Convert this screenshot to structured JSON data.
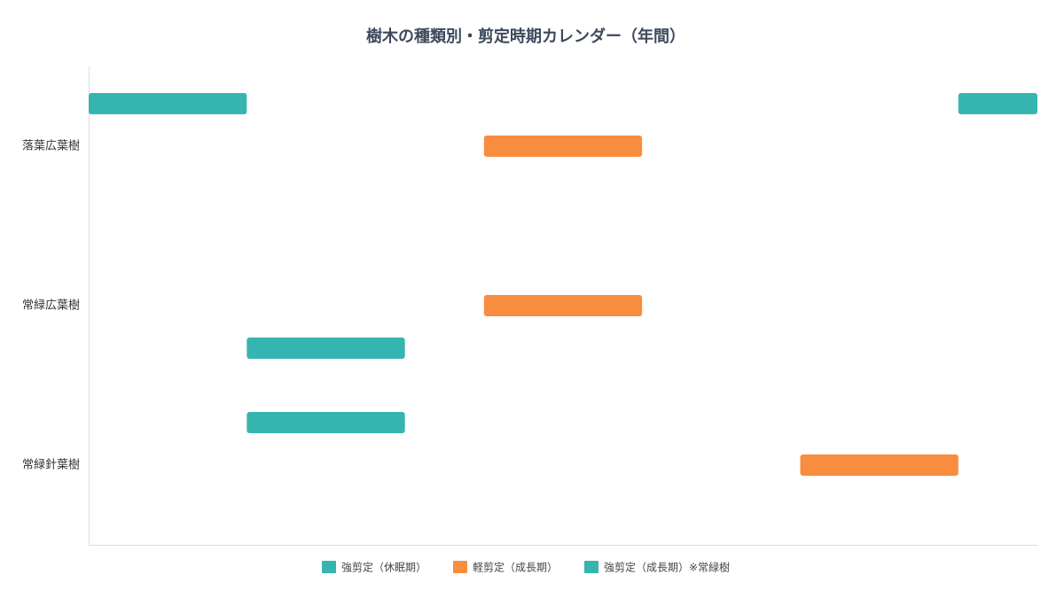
{
  "chart_data": {
    "type": "range-bar",
    "title": "樹木の種類別・剪定時期カレンダー（年間）",
    "categories": [
      "落葉広葉樹",
      "常緑広葉樹",
      "常緑針葉樹"
    ],
    "series": [
      {
        "name": "強剪定（休眠期）",
        "color": "#36b5b0",
        "values": [
          [
            [
              0,
              2
            ],
            [
              11,
              12
            ]
          ],
          null,
          [
            [
              2,
              4
            ]
          ]
        ]
      },
      {
        "name": "軽剪定（成長期）",
        "color": "#f98d3f",
        "values": [
          [
            [
              5,
              7
            ]
          ],
          [
            [
              5,
              7
            ]
          ],
          [
            [
              9,
              11
            ]
          ]
        ]
      },
      {
        "name": "強剪定（成長期）※常緑樹",
        "color": "#36b5b0",
        "values": [
          null,
          [
            [
              2,
              4
            ]
          ],
          null
        ]
      }
    ],
    "xlim": [
      0,
      12
    ]
  }
}
